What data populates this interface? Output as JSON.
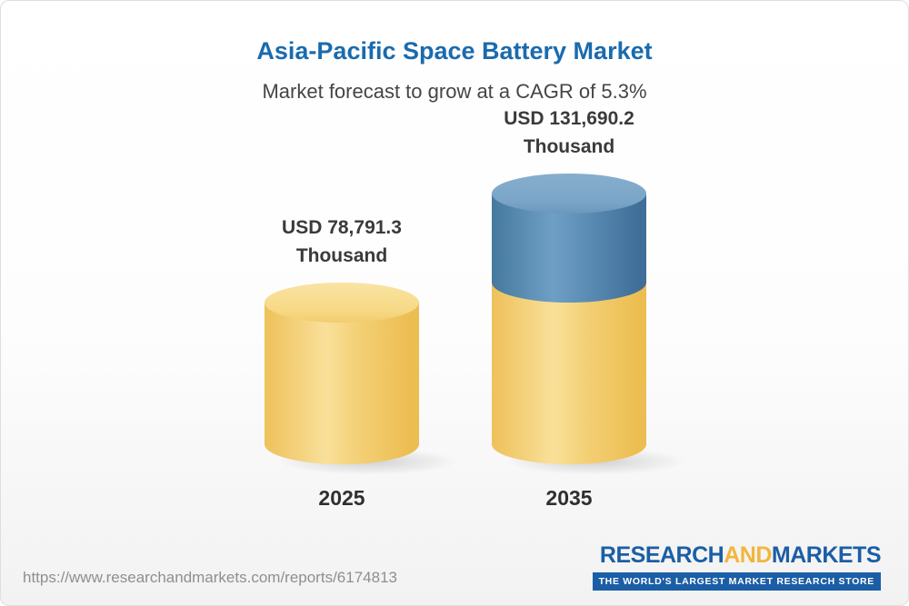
{
  "chart_data": {
    "type": "bar",
    "bar_style": "3d-cylinder",
    "categories": [
      "2025",
      "2035"
    ],
    "values": [
      78791.3,
      131690.2
    ],
    "value_labels": [
      "USD 78,791.3 Thousand",
      "USD 131,690.2 Thousand"
    ],
    "series": [
      {
        "name": "base-segment-yellow",
        "values": [
          78791.3,
          78791.3
        ],
        "color": "#F3CF74"
      },
      {
        "name": "growth-segment-blue",
        "values": [
          0,
          52898.9
        ],
        "color": "#5B8CB4"
      }
    ],
    "title": "Asia-Pacific Space Battery Market",
    "subtitle": "Market forecast to grow at a CAGR of 5.3%",
    "unit": "USD Thousand",
    "cagr_percent": 5.3,
    "ylim": [
      0,
      140000
    ],
    "grid": false,
    "legend": false
  },
  "labels": {
    "bar1": {
      "line1": "USD 78,791.3",
      "line2": "Thousand"
    },
    "bar2": {
      "line1": "USD 131,690.2",
      "line2": "Thousand"
    }
  },
  "footer": {
    "url": "https://www.researchandmarkets.com/reports/6174813",
    "logo": {
      "research": "RESEARCH",
      "and": "AND",
      "markets": "MARKETS",
      "tagline": "THE WORLD'S LARGEST MARKET RESEARCH STORE"
    }
  },
  "colors": {
    "title_blue": "#1A6BAE",
    "subtitle_gray": "#454545",
    "bar_yellow": "#F3CF74",
    "bar_blue": "#5B8CB4",
    "logo_blue": "#1B5EA6",
    "logo_gold": "#F2B63D",
    "url_gray": "#8F8F8F"
  }
}
